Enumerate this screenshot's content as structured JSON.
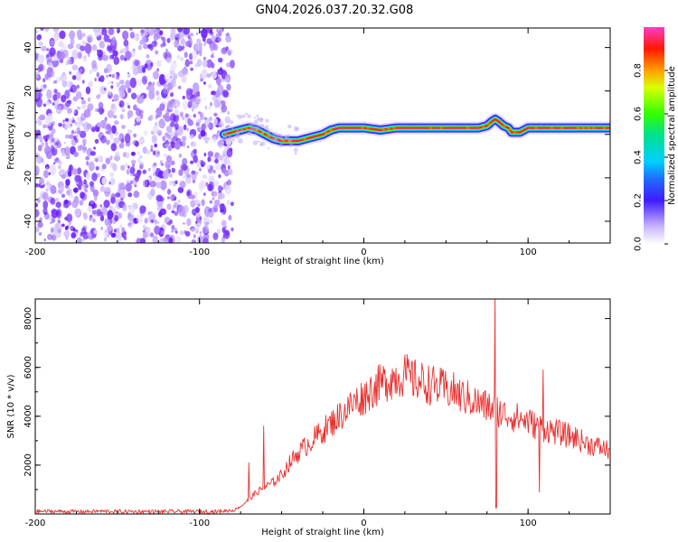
{
  "title": "GN04.2026.037.20.32.G08",
  "chart_data": [
    {
      "type": "heatmap",
      "xlabel": "Height of straight line (km)",
      "ylabel": "Frequency (Hz)",
      "xlim": [
        -200,
        150
      ],
      "ylim": [
        -50,
        49
      ],
      "xticks": [
        "-200",
        "-100",
        "0",
        "100"
      ],
      "yticks": [
        "-40",
        "-20",
        "0",
        "20",
        "40"
      ],
      "noise_region_x": [
        -200,
        -80
      ],
      "ridge": {
        "x": [
          -85,
          -80,
          -75,
          -70,
          -65,
          -60,
          -55,
          -50,
          -45,
          -40,
          -35,
          -30,
          -25,
          -20,
          -15,
          -10,
          -5,
          0,
          10,
          20,
          30,
          40,
          50,
          60,
          65,
          70,
          75,
          78,
          80,
          82,
          85,
          88,
          90,
          95,
          100,
          110,
          120,
          130,
          140,
          150
        ],
        "freq": [
          0,
          1,
          2,
          3,
          2,
          0,
          -2,
          -3,
          -3,
          -3,
          -2,
          -1,
          0,
          2,
          3,
          3,
          3,
          3,
          2,
          3,
          3,
          3,
          3,
          3,
          3,
          3,
          4,
          6,
          7,
          6,
          4,
          3,
          1,
          1,
          3,
          3,
          3,
          3,
          3,
          3
        ]
      },
      "colorbar": {
        "label": "Normalized spectral amplitude",
        "ticks": [
          "0.0",
          "0.2",
          "0.4",
          "0.6",
          "0.8"
        ],
        "range": [
          0,
          1
        ]
      }
    },
    {
      "type": "line",
      "xlabel": "Height of straight line (km)",
      "ylabel": "SNR (10 * v/v)",
      "xlim": [
        -200,
        150
      ],
      "ylim": [
        0,
        8800
      ],
      "xticks": [
        "-200",
        "-100",
        "0",
        "100"
      ],
      "yticks": [
        "2000",
        "4000",
        "6000",
        "8000"
      ],
      "color": "#e8312f",
      "series": [
        {
          "x": [
            -200,
            -190,
            -180,
            -170,
            -160,
            -150,
            -140,
            -130,
            -120,
            -110,
            -100,
            -90,
            -80,
            -75,
            -70,
            -65,
            -60,
            -55,
            -50,
            -45,
            -40,
            -35,
            -30,
            -25,
            -20,
            -15,
            -10,
            -5,
            0,
            5,
            10,
            15,
            20,
            25,
            30,
            35,
            40,
            45,
            50,
            55,
            60,
            65,
            70,
            75,
            80,
            85,
            90,
            95,
            100,
            105,
            110,
            115,
            120,
            125,
            130,
            135,
            140,
            145,
            150
          ],
          "values": [
            100,
            110,
            100,
            100,
            110,
            100,
            100,
            100,
            100,
            100,
            100,
            100,
            150,
            300,
            600,
            900,
            1100,
            1300,
            1600,
            2100,
            2500,
            2800,
            3100,
            3400,
            3700,
            4000,
            4300,
            4600,
            4800,
            5100,
            5300,
            5500,
            5600,
            5700,
            5500,
            5400,
            5300,
            5200,
            5100,
            5000,
            4800,
            4700,
            4500,
            4400,
            4300,
            4100,
            4000,
            3900,
            3800,
            3600,
            3500,
            3400,
            3300,
            3200,
            3100,
            2900,
            2800,
            2700,
            2600
          ]
        }
      ],
      "spikes": [
        {
          "x": -70,
          "y": 2100
        },
        {
          "x": -61,
          "y": 3600
        },
        {
          "x": 80,
          "y": 8800
        },
        {
          "x": 80.5,
          "y": 250
        },
        {
          "x": 109,
          "y": 5900
        },
        {
          "x": 107,
          "y": 900
        }
      ]
    }
  ]
}
